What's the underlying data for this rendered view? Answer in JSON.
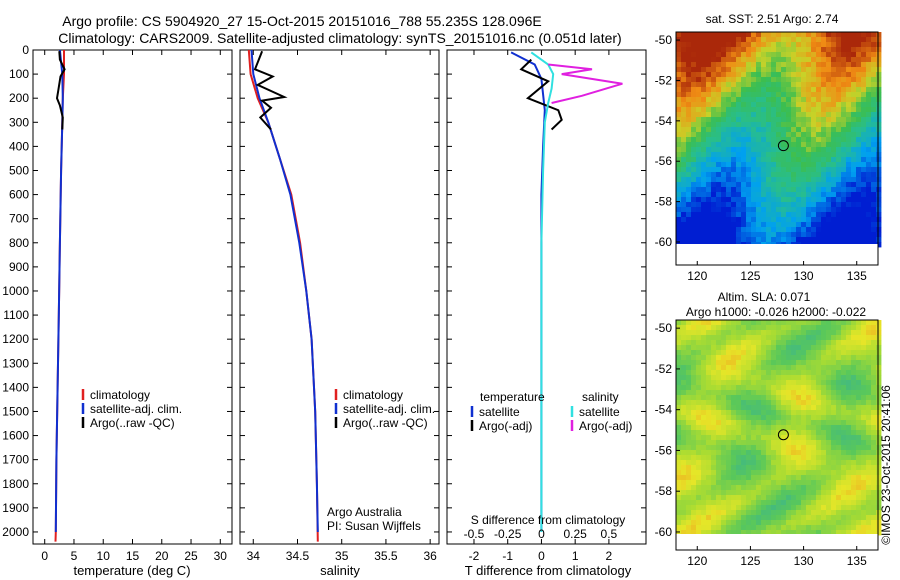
{
  "header": {
    "line1": "Argo profile: CS 5904920_27 15-Oct-2015 20151016_788 55.235S 128.096E",
    "line2": "Climatology: CARS2009. Satellite-adjusted climatology: synTS_20151016.nc (0.051d later)"
  },
  "colors": {
    "climatology": "#e02020",
    "satellite": "#1030d0",
    "argo": "#000000",
    "satellite_s": "#30e0e0",
    "argo_s": "#e020e0"
  },
  "chart_data": [
    {
      "type": "line",
      "id": "temperature",
      "xlabel": "temperature (deg C)",
      "ylabel": "",
      "xlim": [
        -2,
        32
      ],
      "ylim": [
        2050,
        0
      ],
      "xticks": [
        0,
        5,
        10,
        15,
        20,
        25,
        30
      ],
      "yticks": [
        0,
        100,
        200,
        300,
        400,
        500,
        600,
        700,
        800,
        900,
        1000,
        1100,
        1200,
        1300,
        1400,
        1500,
        1600,
        1700,
        1800,
        1900,
        2000
      ],
      "legend": [
        "climatology",
        "satellite-adj. clim.",
        "Argo(..raw -QC)"
      ],
      "series": [
        {
          "name": "climatology",
          "points": [
            [
              3.3,
              0
            ],
            [
              3.3,
              100
            ],
            [
              3.1,
              200
            ],
            [
              3.0,
              300
            ],
            [
              2.8,
              500
            ],
            [
              2.6,
              800
            ],
            [
              2.4,
              1100
            ],
            [
              2.2,
              1400
            ],
            [
              2.0,
              1700
            ],
            [
              1.9,
              2000
            ],
            [
              1.85,
              2040
            ]
          ]
        },
        {
          "name": "satellite-adj. clim.",
          "points": [
            [
              2.6,
              0
            ],
            [
              2.8,
              50
            ],
            [
              3.0,
              100
            ],
            [
              3.1,
              200
            ],
            [
              3.0,
              300
            ],
            [
              2.8,
              500
            ],
            [
              2.6,
              800
            ],
            [
              2.4,
              1100
            ],
            [
              2.2,
              1400
            ],
            [
              2.0,
              1700
            ],
            [
              1.9,
              2000
            ]
          ]
        },
        {
          "name": "Argo(..raw -QC)",
          "points": [
            [
              2.5,
              5
            ],
            [
              2.6,
              40
            ],
            [
              3.4,
              80
            ],
            [
              2.7,
              110
            ],
            [
              2.3,
              170
            ],
            [
              2.1,
              200
            ],
            [
              2.6,
              230
            ],
            [
              3.1,
              280
            ],
            [
              3.0,
              330
            ]
          ]
        }
      ]
    },
    {
      "type": "line",
      "id": "salinity",
      "xlabel": "salinity",
      "ylabel": "",
      "xlim": [
        33.85,
        36.1
      ],
      "ylim": [
        2050,
        0
      ],
      "xticks": [
        34,
        34.5,
        35,
        35.5,
        36
      ],
      "xticklabels": [
        "34",
        "34.5",
        "35",
        "35.5",
        "36"
      ],
      "legend": [
        "climatology",
        "satellite-adj. clim.",
        "Argo(..raw -QC)"
      ],
      "annotations": [
        "Argo Australia",
        "PI: Susan Wijffels"
      ],
      "series": [
        {
          "name": "climatology",
          "points": [
            [
              33.95,
              0
            ],
            [
              33.97,
              100
            ],
            [
              34.05,
              200
            ],
            [
              34.17,
              300
            ],
            [
              34.3,
              450
            ],
            [
              34.43,
              600
            ],
            [
              34.53,
              800
            ],
            [
              34.6,
              1000
            ],
            [
              34.66,
              1200
            ],
            [
              34.7,
              1500
            ],
            [
              34.72,
              1800
            ],
            [
              34.73,
              2040
            ]
          ]
        },
        {
          "name": "satellite-adj. clim.",
          "points": [
            [
              33.98,
              0
            ],
            [
              34.0,
              100
            ],
            [
              34.07,
              200
            ],
            [
              34.17,
              300
            ],
            [
              34.3,
              450
            ],
            [
              34.42,
              600
            ],
            [
              34.52,
              800
            ],
            [
              34.6,
              1000
            ],
            [
              34.66,
              1200
            ],
            [
              34.7,
              1500
            ],
            [
              34.72,
              1800
            ],
            [
              34.73,
              2000
            ]
          ]
        },
        {
          "name": "Argo(..raw -QC)",
          "points": [
            [
              34.1,
              5
            ],
            [
              34.02,
              80
            ],
            [
              34.22,
              110
            ],
            [
              34.05,
              145
            ],
            [
              34.35,
              195
            ],
            [
              34.1,
              210
            ],
            [
              34.2,
              240
            ],
            [
              34.08,
              280
            ],
            [
              34.2,
              330
            ]
          ]
        }
      ]
    },
    {
      "type": "line",
      "id": "difference",
      "xlabel": "T difference from climatology",
      "top_label": "S difference from climatology",
      "xlim": [
        -2.8,
        3.1
      ],
      "ylim": [
        2050,
        0
      ],
      "xticks": [
        -2,
        -1,
        0,
        1,
        2
      ],
      "top_ticks": [
        -0.5,
        -0.25,
        0,
        0.25,
        0.5
      ],
      "top_ticklabels": [
        "-0.5",
        "-0.25",
        "0",
        "0.25",
        "0.5"
      ],
      "legend_titles": [
        "temperature",
        "salinity"
      ],
      "legend": [
        "satellite",
        "Argo(-adj)",
        "satellite",
        "Argo(-adj)"
      ],
      "series": [
        {
          "name": "T satellite",
          "points": [
            [
              -0.9,
              10
            ],
            [
              -0.2,
              60
            ],
            [
              0,
              120
            ],
            [
              0.1,
              250
            ],
            [
              0.05,
              400
            ],
            [
              0,
              600
            ],
            [
              0,
              1000
            ],
            [
              0,
              2000
            ]
          ]
        },
        {
          "name": "T Argo(-adj)",
          "points": [
            [
              -0.3,
              40
            ],
            [
              -0.6,
              80
            ],
            [
              0.2,
              130
            ],
            [
              -0.4,
              200
            ],
            [
              0.5,
              250
            ],
            [
              0.6,
              290
            ],
            [
              0.3,
              330
            ]
          ]
        },
        {
          "name": "S satellite",
          "points": [
            [
              -0.3,
              10
            ],
            [
              0.2,
              60
            ],
            [
              0.35,
              100
            ],
            [
              0.3,
              160
            ],
            [
              0.2,
              220
            ],
            [
              0.1,
              300
            ],
            [
              0.05,
              500
            ],
            [
              0,
              800
            ],
            [
              0,
              2000
            ]
          ]
        },
        {
          "name": "S Argo(-adj)",
          "points": [
            [
              0.2,
              60
            ],
            [
              1.5,
              80
            ],
            [
              0.6,
              100
            ],
            [
              2.4,
              140
            ],
            [
              1.2,
              190
            ],
            [
              0.3,
              220
            ]
          ]
        }
      ]
    }
  ],
  "maps": [
    {
      "id": "sst-map",
      "title": "sat. SST: 2.51 Argo: 2.74",
      "title2": "",
      "xticks": [
        "120",
        "125",
        "130",
        "135"
      ],
      "yticks": [
        "-50",
        "-52",
        "-54",
        "-56",
        "-58",
        "-60"
      ],
      "lon": [
        118,
        137
      ],
      "lat": [
        -60.1,
        -49.6
      ],
      "marker": {
        "lon": 128.1,
        "lat": -55.23
      },
      "palette": "sst"
    },
    {
      "id": "sla-map",
      "title": "Altim. SLA: 0.071",
      "title2": "Argo h1000: -0.026 h2000: -0.022",
      "xticks": [
        "120",
        "125",
        "130",
        "135"
      ],
      "yticks": [
        "-50",
        "-52",
        "-54",
        "-56",
        "-58",
        "-60"
      ],
      "lon": [
        118,
        137
      ],
      "lat": [
        -60.1,
        -49.6
      ],
      "marker": {
        "lon": 128.1,
        "lat": -55.23
      },
      "palette": "sla"
    }
  ],
  "stamp": "©IMOS 23-Oct-2015 20:41:06"
}
